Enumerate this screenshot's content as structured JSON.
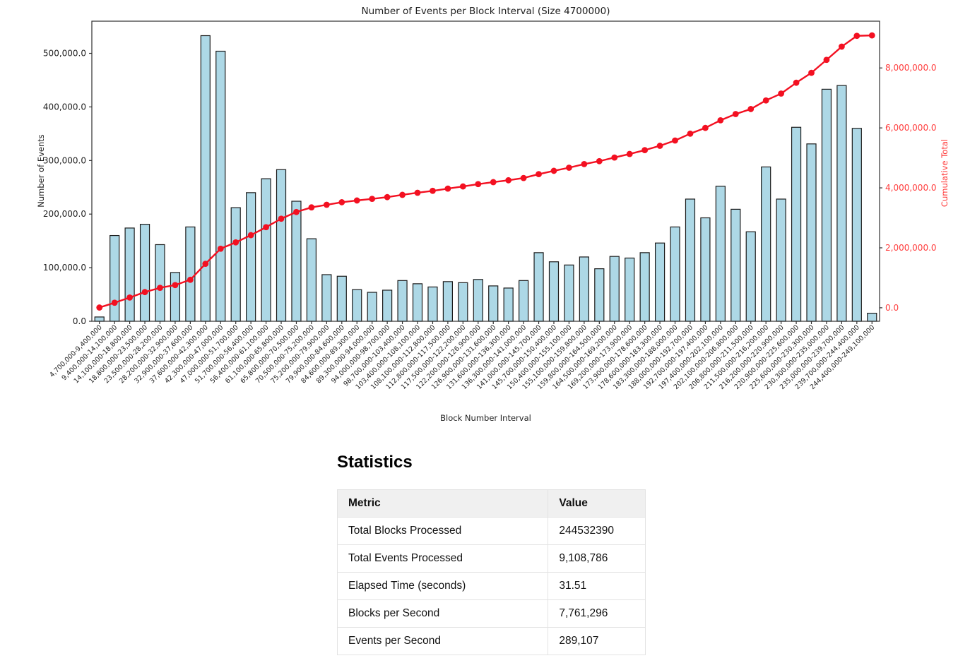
{
  "chart_data": {
    "type": "bar",
    "title": "Number of Events per Block Interval (Size 4700000)",
    "xlabel": "Block Number Interval",
    "ylabel": "Number of Events",
    "ylabel_right": "Cumulative Total",
    "grid": false,
    "legend": "none",
    "ylim_left": [
      0,
      560000
    ],
    "ylim_right": [
      -450000,
      9560000
    ],
    "left_axis_ticks": {
      "values": [
        0,
        100000,
        200000,
        300000,
        400000,
        500000
      ],
      "labels": [
        "0.0",
        "100,000.0",
        "200,000.0",
        "300,000.0",
        "400,000.0",
        "500,000.0"
      ]
    },
    "right_axis_ticks": {
      "values": [
        0,
        2000000,
        4000000,
        6000000,
        8000000
      ],
      "labels": [
        "0.0",
        "2,000,000.0",
        "4,000,000.0",
        "6,000,000.0",
        "8,000,000.0"
      ]
    },
    "colors": {
      "bar_fill": "#add8e6",
      "bar_edge": "#1c1c1c",
      "line": "#f31021",
      "marker": "#f31021",
      "right_axis_text": "#ff3b3b",
      "axis_text": "#1f1f1f",
      "spine": "#2e2e2e"
    },
    "categories": [
      "4,700,000-9,400,000",
      "9,400,000-14,100,000",
      "14,100,000-18,800,000",
      "18,800,000-23,500,000",
      "23,500,000-28,200,000",
      "28,200,000-32,900,000",
      "32,900,000-37,600,000",
      "37,600,000-42,300,000",
      "42,300,000-47,000,000",
      "47,000,000-51,700,000",
      "51,700,000-56,400,000",
      "56,400,000-61,100,000",
      "61,100,000-65,800,000",
      "65,800,000-70,500,000",
      "70,500,000-75,200,000",
      "75,200,000-79,900,000",
      "79,900,000-84,600,000",
      "84,600,000-89,300,000",
      "89,300,000-94,000,000",
      "94,000,000-98,700,000",
      "98,700,000-103,400,000",
      "103,400,000-108,100,000",
      "108,100,000-112,800,000",
      "112,800,000-117,500,000",
      "117,500,000-122,200,000",
      "122,200,000-126,900,000",
      "126,900,000-131,600,000",
      "131,600,000-136,300,000",
      "136,300,000-141,000,000",
      "141,000,000-145,700,000",
      "145,700,000-150,400,000",
      "150,400,000-155,100,000",
      "155,100,000-159,800,000",
      "159,800,000-164,500,000",
      "164,500,000-169,200,000",
      "169,200,000-173,900,000",
      "173,900,000-178,600,000",
      "178,600,000-183,300,000",
      "183,300,000-188,000,000",
      "188,000,000-192,700,000",
      "192,700,000-197,400,000",
      "197,400,000-202,100,000",
      "202,100,000-206,800,000",
      "206,800,000-211,500,000",
      "211,500,000-216,200,000",
      "216,200,000-220,900,000",
      "220,900,000-225,600,000",
      "225,600,000-230,300,000",
      "230,300,000-235,000,000",
      "235,000,000-239,700,000",
      "239,700,000-244,400,000",
      "244,400,000-249,100,000"
    ],
    "series": [
      {
        "name": "Number of Events",
        "type": "bar",
        "axis": "left",
        "values": [
          8000,
          160000,
          174000,
          181000,
          143000,
          91000,
          176000,
          533000,
          504000,
          212000,
          240000,
          266000,
          283000,
          224000,
          154000,
          87000,
          84000,
          59000,
          54000,
          58000,
          76000,
          70000,
          64000,
          74000,
          72000,
          78000,
          66000,
          62000,
          76000,
          128000,
          111000,
          105000,
          120000,
          98000,
          121000,
          118000,
          128000,
          146000,
          176000,
          228000,
          193000,
          252000,
          209000,
          167000,
          288000,
          228000,
          362000,
          331000,
          433000,
          440000,
          360000,
          15000
        ]
      },
      {
        "name": "Cumulative Total",
        "type": "line",
        "axis": "right",
        "values": [
          8000,
          168000,
          342000,
          523000,
          666000,
          757000,
          933000,
          1466000,
          1970000,
          2182000,
          2422000,
          2688000,
          2971000,
          3195000,
          3349000,
          3436000,
          3520000,
          3579000,
          3633000,
          3691000,
          3767000,
          3837000,
          3901000,
          3975000,
          4047000,
          4125000,
          4191000,
          4253000,
          4329000,
          4457000,
          4568000,
          4673000,
          4793000,
          4891000,
          5012000,
          5130000,
          5258000,
          5404000,
          5580000,
          5808000,
          6001000,
          6253000,
          6462000,
          6629000,
          6917000,
          7145000,
          7507000,
          7838000,
          8271000,
          8711000,
          9071000,
          9086000
        ]
      }
    ]
  },
  "statistics": {
    "heading": "Statistics",
    "table": {
      "headers": [
        "Metric",
        "Value"
      ],
      "rows": [
        {
          "metric": "Total Blocks Processed",
          "value": "244532390"
        },
        {
          "metric": "Total Events Processed",
          "value": "9,108,786"
        },
        {
          "metric": "Elapsed Time (seconds)",
          "value": "31.51"
        },
        {
          "metric": "Blocks per Second",
          "value": "7,761,296"
        },
        {
          "metric": "Events per Second",
          "value": "289,107"
        }
      ]
    }
  }
}
